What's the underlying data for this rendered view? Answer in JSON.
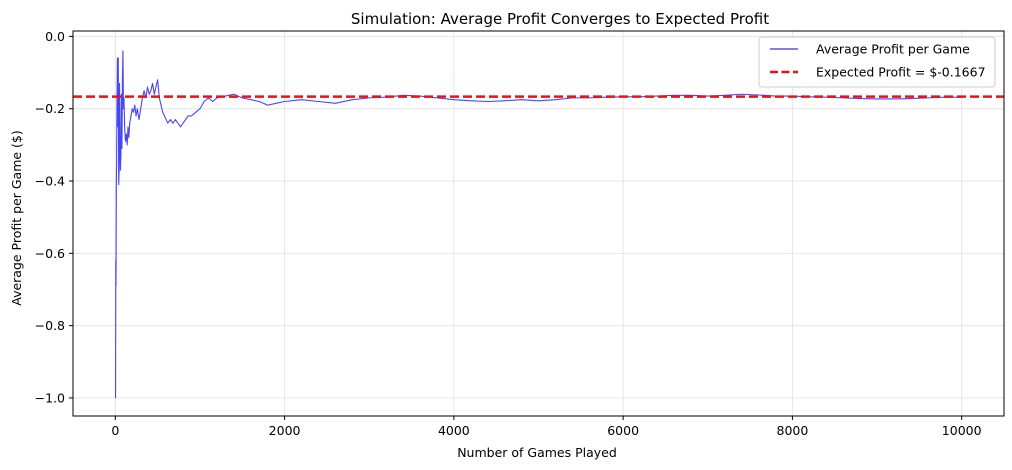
{
  "chart_data": {
    "type": "line",
    "title": "Simulation: Average Profit Converges to Expected Profit",
    "xlabel": "Number of Games Played",
    "ylabel": "Average Profit per Game ($)",
    "xlim": [
      -500,
      10500
    ],
    "ylim": [
      -1.05,
      0.015
    ],
    "xticks": [
      0,
      2000,
      4000,
      6000,
      8000,
      10000
    ],
    "xtick_labels": [
      "0",
      "2000",
      "4000",
      "6000",
      "8000",
      "10000"
    ],
    "yticks": [
      0.0,
      -0.2,
      -0.4,
      -0.6,
      -0.8,
      -1.0
    ],
    "ytick_labels": [
      "0.0",
      "−0.2",
      "−0.4",
      "−0.6",
      "−0.8",
      "−1.0"
    ],
    "grid": true,
    "legend_position": "upper-right",
    "series": [
      {
        "name": "Average Profit per Game",
        "color": "#3333ee",
        "style": "solid",
        "points": [
          [
            1,
            -1.0
          ],
          [
            3,
            -1.0
          ],
          [
            6,
            -0.62
          ],
          [
            8,
            -0.69
          ],
          [
            12,
            -0.42
          ],
          [
            16,
            -0.33
          ],
          [
            20,
            -0.17
          ],
          [
            25,
            -0.06
          ],
          [
            30,
            -0.25
          ],
          [
            35,
            -0.06
          ],
          [
            40,
            -0.41
          ],
          [
            45,
            -0.37
          ],
          [
            50,
            -0.13
          ],
          [
            55,
            -0.28
          ],
          [
            60,
            -0.37
          ],
          [
            66,
            -0.33
          ],
          [
            72,
            -0.16
          ],
          [
            78,
            -0.31
          ],
          [
            84,
            -0.12
          ],
          [
            90,
            -0.04
          ],
          [
            96,
            -0.2
          ],
          [
            102,
            -0.17
          ],
          [
            110,
            -0.25
          ],
          [
            120,
            -0.29
          ],
          [
            130,
            -0.27
          ],
          [
            140,
            -0.3
          ],
          [
            150,
            -0.25
          ],
          [
            160,
            -0.28
          ],
          [
            170,
            -0.24
          ],
          [
            185,
            -0.22
          ],
          [
            200,
            -0.2
          ],
          [
            215,
            -0.21
          ],
          [
            230,
            -0.19
          ],
          [
            245,
            -0.22
          ],
          [
            260,
            -0.2
          ],
          [
            280,
            -0.23
          ],
          [
            300,
            -0.2
          ],
          [
            320,
            -0.17
          ],
          [
            340,
            -0.15
          ],
          [
            360,
            -0.17
          ],
          [
            380,
            -0.14
          ],
          [
            400,
            -0.16
          ],
          [
            420,
            -0.15
          ],
          [
            440,
            -0.13
          ],
          [
            460,
            -0.16
          ],
          [
            480,
            -0.14
          ],
          [
            500,
            -0.12
          ],
          [
            520,
            -0.17
          ],
          [
            540,
            -0.19
          ],
          [
            560,
            -0.21
          ],
          [
            580,
            -0.22
          ],
          [
            600,
            -0.23
          ],
          [
            620,
            -0.24
          ],
          [
            650,
            -0.23
          ],
          [
            680,
            -0.24
          ],
          [
            710,
            -0.23
          ],
          [
            740,
            -0.24
          ],
          [
            770,
            -0.25
          ],
          [
            800,
            -0.24
          ],
          [
            830,
            -0.23
          ],
          [
            860,
            -0.22
          ],
          [
            900,
            -0.22
          ],
          [
            950,
            -0.21
          ],
          [
            1000,
            -0.2
          ],
          [
            1050,
            -0.18
          ],
          [
            1100,
            -0.17
          ],
          [
            1150,
            -0.18
          ],
          [
            1200,
            -0.17
          ],
          [
            1300,
            -0.165
          ],
          [
            1400,
            -0.16
          ],
          [
            1500,
            -0.17
          ],
          [
            1600,
            -0.175
          ],
          [
            1700,
            -0.18
          ],
          [
            1800,
            -0.19
          ],
          [
            1900,
            -0.185
          ],
          [
            2000,
            -0.18
          ],
          [
            2200,
            -0.175
          ],
          [
            2400,
            -0.18
          ],
          [
            2600,
            -0.185
          ],
          [
            2800,
            -0.175
          ],
          [
            3000,
            -0.17
          ],
          [
            3200,
            -0.168
          ],
          [
            3400,
            -0.163
          ],
          [
            3600,
            -0.165
          ],
          [
            3800,
            -0.17
          ],
          [
            4000,
            -0.175
          ],
          [
            4200,
            -0.178
          ],
          [
            4400,
            -0.18
          ],
          [
            4600,
            -0.178
          ],
          [
            4800,
            -0.175
          ],
          [
            5000,
            -0.178
          ],
          [
            5200,
            -0.175
          ],
          [
            5400,
            -0.17
          ],
          [
            5600,
            -0.17
          ],
          [
            5800,
            -0.168
          ],
          [
            6000,
            -0.167
          ],
          [
            6200,
            -0.167
          ],
          [
            6400,
            -0.165
          ],
          [
            6600,
            -0.163
          ],
          [
            6800,
            -0.163
          ],
          [
            7000,
            -0.165
          ],
          [
            7200,
            -0.163
          ],
          [
            7400,
            -0.16
          ],
          [
            7600,
            -0.162
          ],
          [
            7800,
            -0.165
          ],
          [
            8000,
            -0.165
          ],
          [
            8200,
            -0.167
          ],
          [
            8400,
            -0.168
          ],
          [
            8600,
            -0.17
          ],
          [
            8800,
            -0.172
          ],
          [
            9000,
            -0.173
          ],
          [
            9200,
            -0.173
          ],
          [
            9400,
            -0.172
          ],
          [
            9600,
            -0.17
          ],
          [
            9800,
            -0.168
          ],
          [
            10000,
            -0.168
          ]
        ]
      },
      {
        "name": "Expected Profit = $-0.1667",
        "color": "#ee1111",
        "style": "dashed",
        "constant": -0.1667
      }
    ]
  }
}
